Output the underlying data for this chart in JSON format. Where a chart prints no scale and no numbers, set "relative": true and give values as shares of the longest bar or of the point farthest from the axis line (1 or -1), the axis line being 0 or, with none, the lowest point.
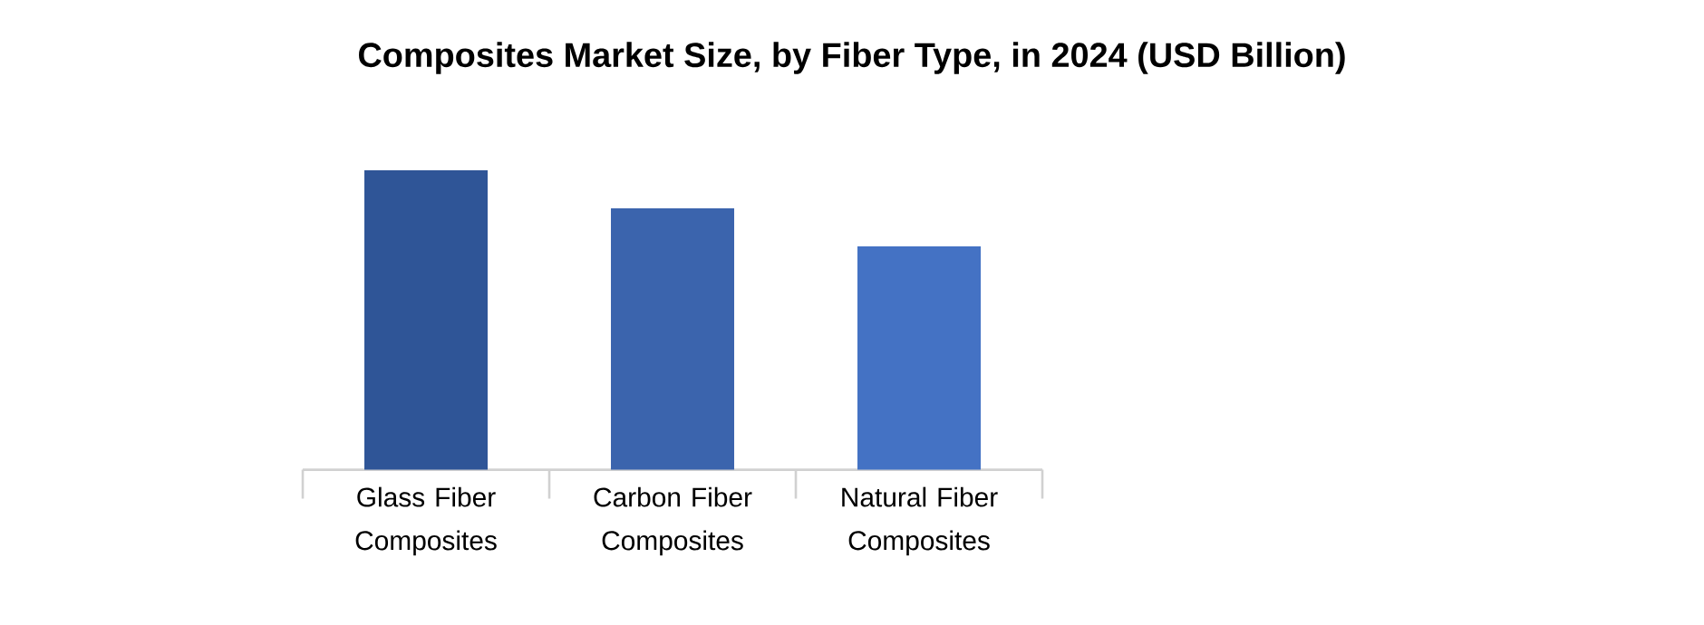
{
  "chart_data": {
    "type": "bar",
    "title": "Composites Market Size, by Fiber Type, in 2024 (USD Billion)",
    "categories": [
      "Glass Fiber Composites",
      "Carbon Fiber Composites",
      "Natural Fiber Composites"
    ],
    "values": [
      1,
      0.873,
      0.746
    ],
    "colors": [
      "#2f5597",
      "#3b64ad",
      "#4472c4"
    ],
    "relative": true
  }
}
